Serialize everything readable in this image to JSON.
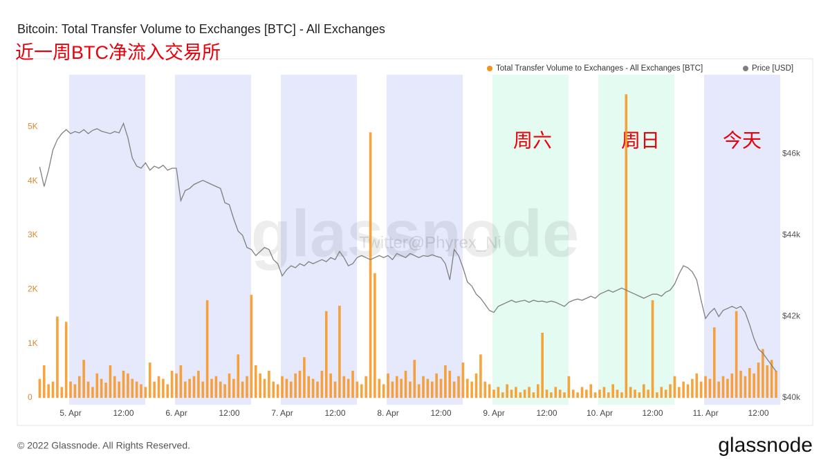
{
  "chart_data": {
    "type": "bar",
    "title": "Bitcoin: Total Transfer Volume to Exchanges [BTC] - All Exchanges",
    "subtitle": "近一周BTC净流入交易所",
    "annotations": [
      "周六",
      "周日",
      "今天"
    ],
    "watermark": "glassnode",
    "watermark_credit": "Twitter@Phyrex_Ni",
    "footer": "© 2022 Glassnode. All Rights Reserved.",
    "logo": "glassnode",
    "categories": [
      null,
      null,
      null,
      null,
      null,
      null,
      null,
      "5. Apr",
      null,
      null,
      null,
      null,
      null,
      null,
      null,
      null,
      null,
      null,
      null,
      "12:00",
      null,
      null,
      null,
      null,
      null,
      null,
      null,
      null,
      null,
      null,
      null,
      "6. Apr",
      null,
      null,
      null,
      null,
      null,
      null,
      null,
      null,
      null,
      null,
      null,
      "12:00",
      null,
      null,
      null,
      null,
      null,
      null,
      null,
      null,
      null,
      null,
      null,
      "7. Apr",
      null,
      null,
      null,
      null,
      null,
      null,
      null,
      null,
      null,
      null,
      null,
      "12:00",
      null,
      null,
      null,
      null,
      null,
      null,
      null,
      null,
      null,
      null,
      null,
      "8. Apr",
      null,
      null,
      null,
      null,
      null,
      null,
      null,
      null,
      null,
      null,
      null,
      "12:00",
      null,
      null,
      null,
      null,
      null,
      null,
      null,
      null,
      null,
      null,
      null,
      "9. Apr",
      null,
      null,
      null,
      null,
      null,
      null,
      null,
      null,
      null,
      null,
      null,
      "12:00",
      null,
      null,
      null,
      null,
      null,
      null,
      null,
      null,
      null,
      null,
      null,
      "10. Apr",
      null,
      null,
      null,
      null,
      null,
      null,
      null,
      null,
      null,
      null,
      null,
      "12:00",
      null,
      null,
      null,
      null,
      null,
      null,
      null,
      null,
      null,
      null,
      null,
      "11. Apr",
      null,
      null,
      null,
      null,
      null,
      null,
      null,
      null,
      null,
      null,
      null,
      "12:00",
      null,
      null,
      null,
      null
    ],
    "series": [
      {
        "name": "Total Transfer Volume to Exchanges - All Exchanges [BTC]",
        "type": "bar",
        "color": "#f7931a",
        "values": [
          350,
          600,
          250,
          300,
          1500,
          200,
          1400,
          300,
          250,
          400,
          700,
          300,
          200,
          450,
          350,
          280,
          600,
          400,
          300,
          500,
          450,
          350,
          300,
          250,
          200,
          650,
          300,
          400,
          350,
          250,
          500,
          450,
          600,
          300,
          350,
          400,
          500,
          300,
          1800,
          350,
          400,
          300,
          250,
          450,
          350,
          800,
          300,
          400,
          1900,
          600,
          450,
          350,
          500,
          300,
          250,
          400,
          350,
          300,
          450,
          500,
          750,
          400,
          350,
          300,
          500,
          1600,
          450,
          300,
          1700,
          400,
          350,
          500,
          300,
          250,
          400,
          4900,
          2300,
          350,
          250,
          450,
          300,
          400,
          350,
          500,
          300,
          700,
          250,
          400,
          350,
          300,
          450,
          350,
          600,
          500,
          300,
          400,
          650,
          350,
          300,
          450,
          800,
          300,
          250,
          150,
          200,
          100,
          250,
          150,
          200,
          100,
          150,
          200,
          100,
          250,
          1200,
          150,
          100,
          200,
          150,
          100,
          400,
          150,
          100,
          200,
          150,
          250,
          100,
          150,
          200,
          100,
          250,
          150,
          100,
          5600,
          200,
          150,
          100,
          250,
          150,
          1800,
          100,
          200,
          150,
          250,
          400,
          200,
          300,
          250,
          350,
          450,
          300,
          400,
          350,
          1300,
          300,
          400,
          350,
          450,
          1600,
          500,
          400,
          550,
          450,
          650,
          900,
          600,
          700,
          500
        ]
      },
      {
        "name": "Price [USD]",
        "type": "line",
        "axis": "y2",
        "color": "#7f7f7f",
        "values": [
          45680,
          45200,
          45600,
          46100,
          46350,
          46500,
          46600,
          46500,
          46550,
          46520,
          46600,
          46500,
          46580,
          46620,
          46560,
          46530,
          46500,
          46550,
          46520,
          46750,
          46400,
          45900,
          45700,
          45650,
          45780,
          45600,
          45700,
          45650,
          45720,
          45600,
          45650,
          45650,
          44850,
          45100,
          45150,
          45250,
          45300,
          45350,
          45300,
          45250,
          45200,
          45150,
          44800,
          44750,
          44400,
          44100,
          44000,
          43700,
          43650,
          43500,
          43600,
          43700,
          43650,
          43400,
          43300,
          43000,
          43150,
          43250,
          43200,
          43300,
          43250,
          43350,
          43300,
          43350,
          43400,
          43350,
          43450,
          43400,
          43600,
          43450,
          43250,
          43300,
          43450,
          43500,
          43450,
          43400,
          43450,
          43500,
          43450,
          43500,
          43400,
          43550,
          43500,
          43450,
          43550,
          43500,
          43450,
          43500,
          43480,
          43520,
          43480,
          43450,
          43300,
          42900,
          43650,
          43500,
          43200,
          42850,
          42750,
          42550,
          42450,
          42300,
          42150,
          42100,
          42250,
          42300,
          42350,
          42400,
          42350,
          42380,
          42400,
          42350,
          42400,
          42370,
          42380,
          42350,
          42380,
          42350,
          42300,
          42250,
          42350,
          42400,
          42430,
          42400,
          42450,
          42500,
          42450,
          42550,
          42600,
          42650,
          42600,
          42650,
          42700,
          42650,
          42600,
          42550,
          42500,
          42450,
          42500,
          42550,
          42550,
          42500,
          42600,
          42650,
          42800,
          43050,
          43250,
          43200,
          43100,
          42900,
          42400,
          41950,
          42100,
          42200,
          42000,
          42150,
          42200,
          42250,
          42200,
          42250,
          42100,
          41800,
          41450,
          41200,
          41100,
          40950,
          40800,
          40650
        ]
      }
    ],
    "ylim": [
      0,
      6000
    ],
    "yticks": [
      0,
      {
        "value": 1000,
        "label": "1K"
      },
      {
        "value": 2000,
        "label": "2K"
      },
      {
        "value": 3000,
        "label": "3K"
      },
      {
        "value": 4000,
        "label": "4K"
      },
      {
        "value": 5000,
        "label": "5K"
      }
    ],
    "y2lim": [
      40000,
      48000
    ],
    "y2ticks": [
      {
        "value": 40000,
        "label": "$40k"
      },
      {
        "value": 42000,
        "label": "$42k"
      },
      {
        "value": 44000,
        "label": "$44k"
      },
      {
        "value": 46000,
        "label": "$46k"
      }
    ],
    "grid": false,
    "legend": "top-right"
  }
}
